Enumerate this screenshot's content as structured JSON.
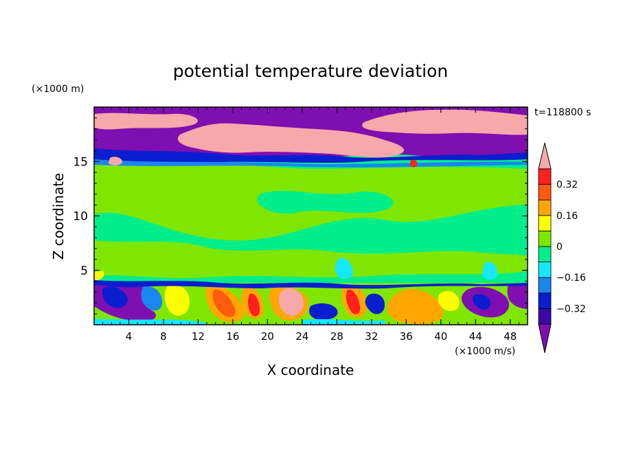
{
  "chart_data": {
    "type": "heatmap",
    "title": "potential temperature deviation",
    "xlabel": "X coordinate",
    "ylabel": "Z coordinate",
    "x_unit": "(×1000 m/s)",
    "y_unit": "(×1000 m)",
    "time_label": "t=118800 s",
    "xlim": [
      0,
      50
    ],
    "ylim": [
      0,
      20
    ],
    "x_ticks": [
      4,
      8,
      12,
      16,
      20,
      24,
      28,
      32,
      36,
      40,
      44,
      48
    ],
    "y_ticks": [
      5,
      10,
      15
    ],
    "colorbar": {
      "levels": [
        -0.4,
        -0.32,
        -0.24,
        -0.16,
        -0.08,
        0,
        0.08,
        0.16,
        0.24,
        0.32,
        0.4
      ],
      "labeled_levels": [
        0.32,
        0.16,
        0,
        -0.16,
        -0.32
      ],
      "label_text": [
        "0.32",
        "0.16",
        "0",
        "−0.16",
        "−0.32"
      ],
      "colors": [
        "#7f0fb0",
        "#3a0aa6",
        "#0a1ecf",
        "#1a86f0",
        "#14e8ff",
        "#00ee8a",
        "#7fe600",
        "#ffff00",
        "#ffa600",
        "#ff5a10",
        "#ff2020",
        "#f6a8aa"
      ],
      "extend": "both"
    },
    "fields": {
      "upper_layer": {
        "z_range": [
          15.5,
          20
        ],
        "x_range": [
          0,
          50
        ],
        "dominant_values": [
          -0.4,
          0.4
        ],
        "description_values": "alternating strongly negative and strongly positive deviation"
      },
      "middle_layer": {
        "z_range": [
          4,
          15
        ],
        "x_range": [
          0,
          50
        ],
        "dominant_values": [
          -0.04,
          0.04
        ]
      },
      "lower_layer": {
        "z_range": [
          0,
          4
        ],
        "x_range": [
          0,
          50
        ],
        "dominant_values": [
          -0.4,
          0.4
        ]
      }
    }
  }
}
